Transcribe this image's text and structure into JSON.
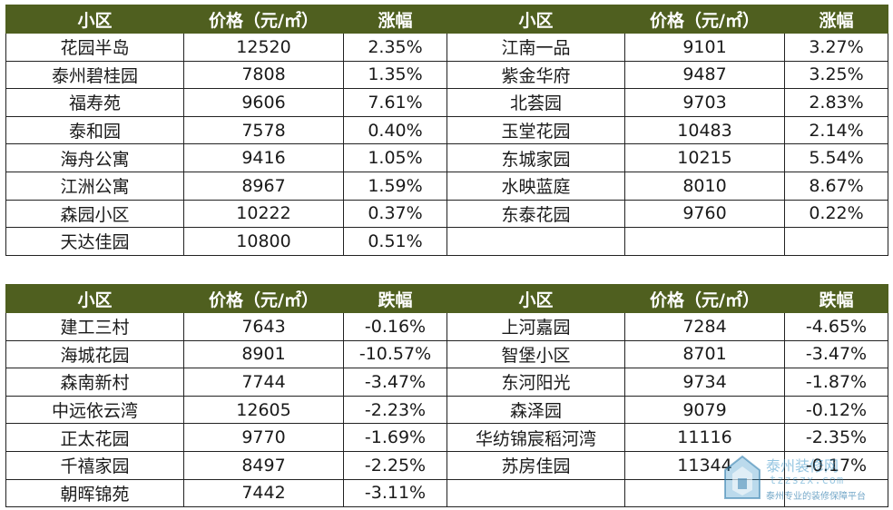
{
  "rise_table": {
    "headers": [
      "小区",
      "价格（元/㎡）",
      "涨幅",
      "小区",
      "价格（元/㎡）",
      "涨幅"
    ],
    "rows": [
      [
        "花园半岛",
        "12520",
        "2.35%",
        "江南一品",
        "9101",
        "3.27%"
      ],
      [
        "泰州碧桂园",
        "7808",
        "1.35%",
        "紫金华府",
        "9487",
        "3.25%"
      ],
      [
        "福寿苑",
        "9606",
        "7.61%",
        "北荟园",
        "9703",
        "2.83%"
      ],
      [
        "泰和园",
        "7578",
        "0.40%",
        "玉堂花园",
        "10483",
        "2.14%"
      ],
      [
        "海舟公寓",
        "9416",
        "1.05%",
        "东城家园",
        "10215",
        "5.54%"
      ],
      [
        "江洲公寓",
        "8967",
        "1.59%",
        "水映蓝庭",
        "8010",
        "8.67%"
      ],
      [
        "森园小区",
        "10222",
        "0.37%",
        "东泰花园",
        "9760",
        "0.22%"
      ],
      [
        "天达佳园",
        "10800",
        "0.51%",
        "",
        "",
        ""
      ]
    ]
  },
  "fall_table": {
    "headers": [
      "小区",
      "价格（元/㎡）",
      "跌幅",
      "小区",
      "价格（元/㎡）",
      "跌幅"
    ],
    "rows": [
      [
        "建工三村",
        "7643",
        "-0.16%",
        "上河嘉园",
        "7284",
        "-4.65%"
      ],
      [
        "海城花园",
        "8901",
        "-10.57%",
        "智堡小区",
        "8701",
        "-3.47%"
      ],
      [
        "森南新村",
        "7744",
        "-3.47%",
        "东河阳光",
        "9734",
        "-1.87%"
      ],
      [
        "中远依云湾",
        "12605",
        "-2.23%",
        "森泽园",
        "9079",
        "-0.12%"
      ],
      [
        "正太花园",
        "9770",
        "-1.69%",
        "华纺锦宸稻河湾",
        "11116",
        "-2.35%"
      ],
      [
        "千禧家园",
        "8497",
        "-2.25%",
        "苏房佳园",
        "11344",
        "-0.17%"
      ],
      [
        "朝晖锦苑",
        "7442",
        "-3.11%",
        "",
        "",
        ""
      ]
    ]
  },
  "watermark": {
    "title": "泰州装修网",
    "url": "tzzszx.com",
    "slogan": "泰州专业的装修保障平台",
    "logo_icon": "house-shield-icon"
  },
  "colors": {
    "header_bg": "#4f5f1f",
    "header_text": "#ffffff",
    "border": "#222222"
  }
}
